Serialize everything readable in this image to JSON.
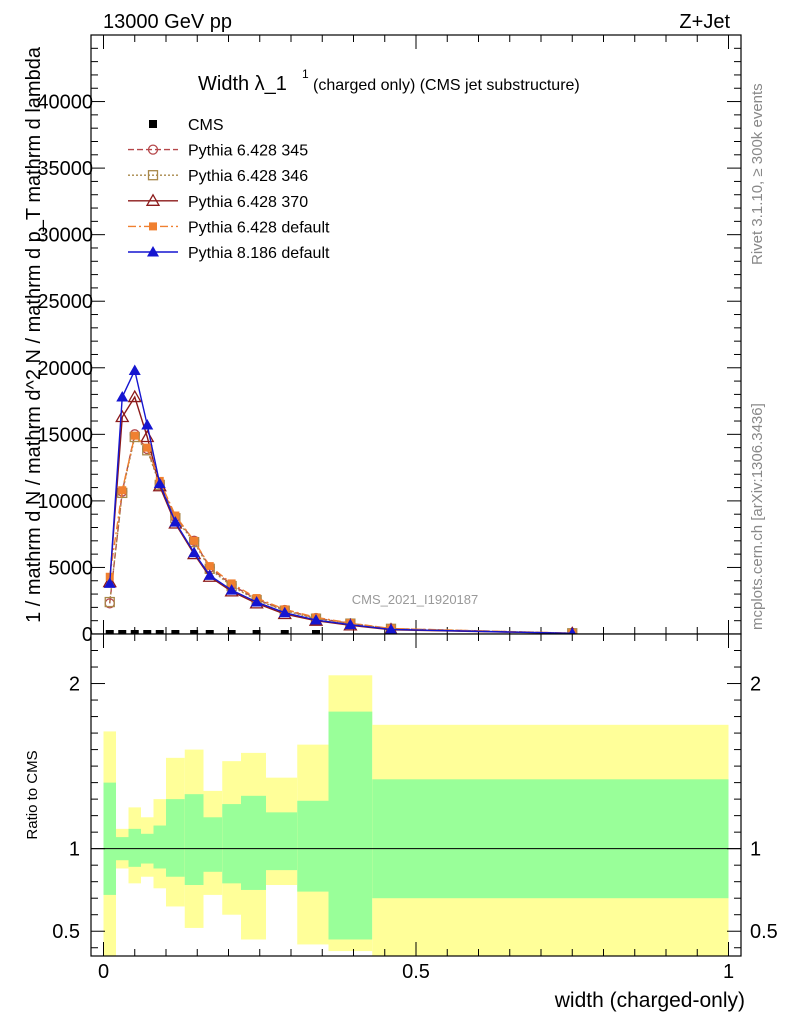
{
  "header": {
    "energy_label": "13000 GeV pp",
    "process_label": "Z+Jet",
    "title_main": "Width λ_1",
    "title_sup": "1",
    "title_sub": "(charged only) (CMS jet substructure)",
    "watermark": "CMS_2021_I1920187",
    "side_label_top": "Rivet 3.1.10, ≥ 300k events",
    "side_label_bottom": "mcplots.cern.ch [arXiv:1306.3436]"
  },
  "colors": {
    "cms": "#000000",
    "py345": "#b5474a",
    "py346": "#a8884a",
    "py370": "#8b1a1a",
    "pydefault": "#f08030",
    "py8": "#1515d0",
    "band_outer": "#ffff99",
    "band_inner": "#99ff99"
  },
  "chart_data": [
    {
      "type": "line",
      "title": "Width λ_1^1 (charged only) (CMS jet substructure)",
      "ylabel": "1 / mathrm d N / mathrm d^2 N / mathrm d p_T mathrm d lambda",
      "xlabel": "",
      "xlim": [
        -0.02,
        1.02
      ],
      "ylim": [
        0,
        45000
      ],
      "yticks": [
        0,
        5000,
        10000,
        15000,
        20000,
        25000,
        30000,
        35000,
        40000
      ],
      "ytick_labels": [
        "0",
        "5000",
        "10000",
        "15000",
        "20000",
        "25000",
        "30000",
        "35000",
        "40000"
      ],
      "legend_position": "top-left",
      "series": [
        {
          "name": "CMS",
          "key": "cms",
          "marker": "square",
          "dash": "none",
          "x": [
            0.01,
            0.03,
            0.05,
            0.07,
            0.09,
            0.115,
            0.145,
            0.17,
            0.205,
            0.245,
            0.29,
            0.34
          ],
          "y": [
            0,
            0,
            0,
            0,
            0,
            0,
            0,
            0,
            0,
            0,
            0,
            0
          ]
        },
        {
          "name": "Pythia 6.428 345",
          "key": "py345",
          "marker": "circle",
          "dash": "6,3",
          "x": [
            0.01,
            0.03,
            0.05,
            0.07,
            0.09,
            0.115,
            0.145,
            0.17,
            0.205,
            0.245,
            0.29,
            0.34,
            0.395,
            0.46,
            0.75
          ],
          "y": [
            2300,
            10700,
            15000,
            13900,
            11300,
            8800,
            7000,
            5000,
            3700,
            2600,
            1800,
            1200,
            800,
            400,
            60
          ]
        },
        {
          "name": "Pythia 6.428 346",
          "key": "py346",
          "marker": "square-open",
          "dash": "2,2",
          "x": [
            0.01,
            0.03,
            0.05,
            0.07,
            0.09,
            0.115,
            0.145,
            0.17,
            0.205,
            0.245,
            0.29,
            0.34,
            0.395,
            0.46,
            0.75
          ],
          "y": [
            2400,
            10600,
            14800,
            13800,
            11200,
            8700,
            6900,
            4900,
            3600,
            2550,
            1750,
            1150,
            780,
            390,
            55
          ]
        },
        {
          "name": "Pythia 6.428 370",
          "key": "py370",
          "marker": "triangle-open",
          "dash": "none",
          "x": [
            0.01,
            0.03,
            0.05,
            0.07,
            0.09,
            0.115,
            0.145,
            0.17,
            0.205,
            0.245,
            0.29,
            0.34,
            0.395,
            0.46,
            0.75
          ],
          "y": [
            3900,
            16300,
            17800,
            14800,
            11100,
            8300,
            6000,
            4300,
            3200,
            2300,
            1500,
            1000,
            650,
            320,
            45
          ]
        },
        {
          "name": "Pythia 6.428 default",
          "key": "pydefault",
          "marker": "square-filled",
          "dash": "8,3,2,3",
          "x": [
            0.01,
            0.03,
            0.05,
            0.07,
            0.09,
            0.115,
            0.145,
            0.17,
            0.205,
            0.245,
            0.29,
            0.34,
            0.395,
            0.46,
            0.75
          ],
          "y": [
            4300,
            10800,
            14900,
            14000,
            11500,
            8900,
            7000,
            5100,
            3800,
            2700,
            1850,
            1250,
            820,
            410,
            60
          ]
        },
        {
          "name": "Pythia 8.186 default",
          "key": "py8",
          "marker": "triangle-filled",
          "dash": "none",
          "x": [
            0.01,
            0.03,
            0.05,
            0.07,
            0.09,
            0.115,
            0.145,
            0.17,
            0.205,
            0.245,
            0.29,
            0.34,
            0.395,
            0.46,
            0.75
          ],
          "y": [
            3800,
            17800,
            19800,
            15700,
            11300,
            8400,
            6100,
            4400,
            3300,
            2400,
            1600,
            1050,
            700,
            340,
            50
          ]
        }
      ]
    },
    {
      "type": "area",
      "title": "",
      "ylabel": "Ratio to CMS",
      "xlabel": "width (charged-only)",
      "xlim": [
        -0.02,
        1.02
      ],
      "ylim": [
        0.35,
        2.3
      ],
      "yticks": [
        0.5,
        1,
        2
      ],
      "ytick_labels": [
        "0.5",
        "1",
        "2"
      ],
      "xticks": [
        0,
        0.5,
        1
      ],
      "xtick_labels": [
        "0",
        "0.5",
        "1"
      ],
      "bins": [
        {
          "lo": 0.0,
          "hi": 0.02,
          "out_lo": 0.35,
          "out_hi": 1.71,
          "in_lo": 0.72,
          "in_hi": 1.4
        },
        {
          "lo": 0.02,
          "hi": 0.04,
          "out_lo": 0.88,
          "out_hi": 1.12,
          "in_lo": 0.93,
          "in_hi": 1.07
        },
        {
          "lo": 0.04,
          "hi": 0.06,
          "out_lo": 0.79,
          "out_hi": 1.25,
          "in_lo": 0.89,
          "in_hi": 1.12
        },
        {
          "lo": 0.06,
          "hi": 0.08,
          "out_lo": 0.83,
          "out_hi": 1.19,
          "in_lo": 0.91,
          "in_hi": 1.09
        },
        {
          "lo": 0.08,
          "hi": 0.1,
          "out_lo": 0.76,
          "out_hi": 1.3,
          "in_lo": 0.88,
          "in_hi": 1.14
        },
        {
          "lo": 0.1,
          "hi": 0.13,
          "out_lo": 0.65,
          "out_hi": 1.55,
          "in_lo": 0.83,
          "in_hi": 1.3
        },
        {
          "lo": 0.13,
          "hi": 0.16,
          "out_lo": 0.52,
          "out_hi": 1.6,
          "in_lo": 0.78,
          "in_hi": 1.33
        },
        {
          "lo": 0.16,
          "hi": 0.19,
          "out_lo": 0.72,
          "out_hi": 1.35,
          "in_lo": 0.86,
          "in_hi": 1.19
        },
        {
          "lo": 0.19,
          "hi": 0.22,
          "out_lo": 0.6,
          "out_hi": 1.53,
          "in_lo": 0.79,
          "in_hi": 1.27
        },
        {
          "lo": 0.22,
          "hi": 0.26,
          "out_lo": 0.45,
          "out_hi": 1.58,
          "in_lo": 0.75,
          "in_hi": 1.32
        },
        {
          "lo": 0.26,
          "hi": 0.31,
          "out_lo": 0.78,
          "out_hi": 1.43,
          "in_lo": 0.87,
          "in_hi": 1.22
        },
        {
          "lo": 0.31,
          "hi": 0.36,
          "out_lo": 0.42,
          "out_hi": 1.63,
          "in_lo": 0.74,
          "in_hi": 1.29
        },
        {
          "lo": 0.36,
          "hi": 0.43,
          "out_lo": 0.38,
          "out_hi": 2.05,
          "in_lo": 0.45,
          "in_hi": 1.83
        },
        {
          "lo": 0.43,
          "hi": 1.0,
          "out_lo": 0.35,
          "out_hi": 1.75,
          "in_lo": 0.7,
          "in_hi": 1.42
        }
      ],
      "reference_line": 1
    }
  ]
}
